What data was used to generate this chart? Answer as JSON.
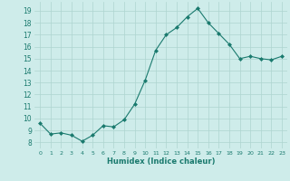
{
  "x": [
    0,
    1,
    2,
    3,
    4,
    5,
    6,
    7,
    8,
    9,
    10,
    11,
    12,
    13,
    14,
    15,
    16,
    17,
    18,
    19,
    20,
    21,
    22,
    23
  ],
  "y": [
    9.6,
    8.7,
    8.8,
    8.6,
    8.1,
    8.6,
    9.4,
    9.3,
    9.9,
    11.2,
    13.2,
    15.7,
    17.0,
    17.6,
    18.5,
    19.2,
    18.0,
    17.1,
    16.2,
    15.0,
    15.2,
    15.0,
    14.9,
    15.2
  ],
  "line_color": "#1a7a6e",
  "marker_color": "#1a7a6e",
  "bg_color": "#ceecea",
  "grid_color": "#aed4d0",
  "xlabel": "Humidex (Indice chaleur)",
  "xlabel_color": "#1a7a6e",
  "tick_color": "#1a7a6e",
  "ylim": [
    7.5,
    19.75
  ],
  "yticks": [
    8,
    9,
    10,
    11,
    12,
    13,
    14,
    15,
    16,
    17,
    18,
    19
  ],
  "xlim": [
    -0.5,
    23.5
  ],
  "xticks": [
    0,
    1,
    2,
    3,
    4,
    5,
    6,
    7,
    8,
    9,
    10,
    11,
    12,
    13,
    14,
    15,
    16,
    17,
    18,
    19,
    20,
    21,
    22,
    23
  ]
}
